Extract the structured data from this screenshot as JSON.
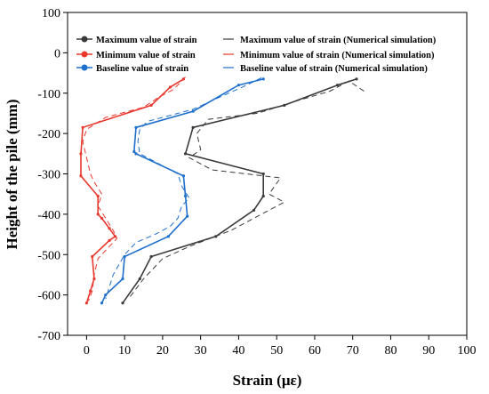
{
  "chart_data": {
    "type": "line",
    "xlabel": "Strain (με)",
    "ylabel": "Height of the pile (mm)",
    "xlim": [
      -5,
      100
    ],
    "ylim": [
      -700,
      100
    ],
    "xticks": [
      "0",
      "10",
      "20",
      "30",
      "40",
      "50",
      "60",
      "70",
      "80",
      "90",
      "100"
    ],
    "yticks": [
      "100",
      "0",
      "-100",
      "-200",
      "-300",
      "-400",
      "-500",
      "-600",
      "-700"
    ],
    "legend_position": "top",
    "grid": false,
    "series": [
      {
        "name": "Maximum value of strain",
        "color": "#3a3a3a",
        "style": "solid-marker",
        "x": [
          71,
          66,
          52,
          28,
          26,
          46.5,
          46.5,
          44,
          34,
          17,
          14,
          9.5
        ],
        "y": [
          -65,
          -80,
          -130,
          -185,
          -250,
          -300,
          -355,
          -390,
          -455,
          -505,
          -560,
          -620
        ]
      },
      {
        "name": "Minimum value of strain",
        "color": "#e8392f",
        "style": "solid-marker",
        "x": [
          25.5,
          22,
          17,
          -1,
          -1.5,
          -1.5,
          3,
          3,
          4,
          6,
          7.5,
          6,
          1.5,
          2,
          1,
          0
        ],
        "y": [
          -65,
          -85,
          -130,
          -185,
          -250,
          -305,
          -355,
          -400,
          -410,
          -435,
          -455,
          -465,
          -505,
          -560,
          -590,
          -620
        ]
      },
      {
        "name": "Baseline value of strain",
        "color": "#1f6fcc",
        "style": "solid-marker",
        "x": [
          46.5,
          40,
          28,
          13,
          12.5,
          13,
          25.5,
          26,
          26.5,
          21.5,
          10,
          9.5,
          5,
          4
        ],
        "y": [
          -65,
          -80,
          -145,
          -185,
          -245,
          -250,
          -305,
          -355,
          -405,
          -455,
          -505,
          -560,
          -600,
          -620
        ]
      },
      {
        "name": "Maximum value of strain (Numerical simulation)",
        "color": "#3a3a3a",
        "style": "dashed",
        "x": [
          73,
          69,
          64,
          55,
          45,
          32,
          29,
          30,
          27,
          33,
          42,
          51,
          48,
          52,
          44,
          38,
          27,
          20,
          15,
          11
        ],
        "y": [
          -95,
          -70,
          -95,
          -120,
          -150,
          -165,
          -200,
          -240,
          -260,
          -290,
          -300,
          -310,
          -350,
          -370,
          -410,
          -440,
          -480,
          -510,
          -560,
          -610
        ]
      },
      {
        "name": "Minimum value of strain (Numerical simulation)",
        "color": "#e8392f",
        "style": "dashed",
        "x": [
          26,
          23,
          19,
          15,
          5,
          0,
          -1,
          0,
          1,
          2,
          4,
          3,
          5,
          7,
          8,
          6,
          3,
          2,
          1.5,
          0.5
        ],
        "y": [
          -60,
          -90,
          -110,
          -135,
          -160,
          -190,
          -220,
          -260,
          -300,
          -320,
          -350,
          -380,
          -410,
          -440,
          -460,
          -480,
          -510,
          -550,
          -590,
          -615
        ]
      },
      {
        "name": "Baseline value of strain (Numerical simulation)",
        "color": "#1f6fcc",
        "style": "dashed",
        "x": [
          46,
          41,
          35,
          28,
          16,
          14,
          13.5,
          14,
          20,
          24,
          25,
          27,
          25,
          24,
          22,
          18,
          13,
          10,
          7,
          5
        ],
        "y": [
          -62,
          -85,
          -110,
          -140,
          -170,
          -190,
          -220,
          -250,
          -280,
          -300,
          -330,
          -360,
          -380,
          -410,
          -430,
          -450,
          -470,
          -500,
          -550,
          -610
        ]
      }
    ]
  },
  "colors": {
    "background": "#ffffff",
    "axis": "#000000"
  }
}
